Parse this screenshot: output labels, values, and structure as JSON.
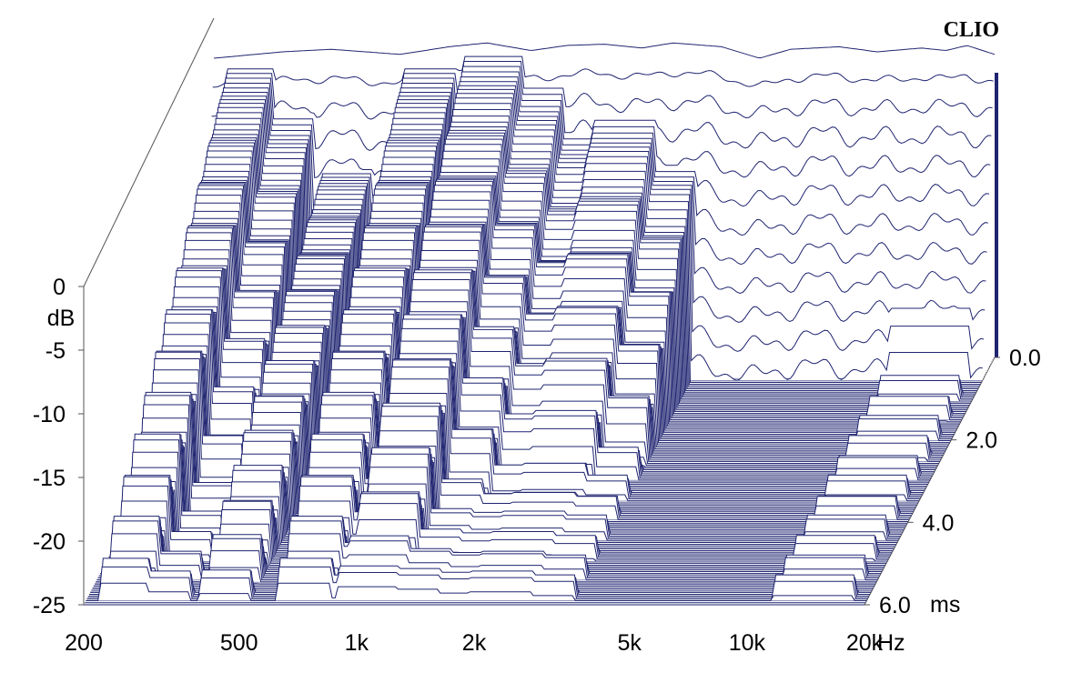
{
  "brand": "CLIO",
  "colors": {
    "trace": "#1f2470",
    "frame": "#555555",
    "text": "#000000",
    "background": "#ffffff"
  },
  "chart_data": {
    "type": "waterfall",
    "title": "",
    "xlabel": "Hz",
    "ylabel": "dB",
    "zlabel": "ms",
    "x_scale": "log",
    "xlim": [
      200,
      20000
    ],
    "ylim": [
      -25,
      0
    ],
    "zlim": [
      0,
      6.0
    ],
    "x_ticks": [
      {
        "value": 200,
        "label": "200"
      },
      {
        "value": 500,
        "label": "500"
      },
      {
        "value": 1000,
        "label": "1k"
      },
      {
        "value": 2000,
        "label": "2k"
      },
      {
        "value": 5000,
        "label": "5k"
      },
      {
        "value": 10000,
        "label": "10k"
      },
      {
        "value": 20000,
        "label": "20k"
      }
    ],
    "y_ticks": [
      {
        "value": 0,
        "label": "0"
      },
      {
        "value": -5,
        "label": "-5"
      },
      {
        "value": -10,
        "label": "-10"
      },
      {
        "value": -15,
        "label": "-15"
      },
      {
        "value": -20,
        "label": "-20"
      },
      {
        "value": -25,
        "label": "-25"
      }
    ],
    "z_ticks": [
      {
        "value": 0.0,
        "label": "0.0"
      },
      {
        "value": 2.0,
        "label": "2.0"
      },
      {
        "value": 4.0,
        "label": "4.0"
      },
      {
        "value": 6.0,
        "label": "6.0"
      }
    ],
    "slices": {
      "count": 120,
      "time_step_ms": 0.05
    },
    "initial_response": {
      "freq": [
        200,
        300,
        400,
        600,
        800,
        1000,
        1300,
        1600,
        2000,
        2500,
        3000,
        4000,
        5000,
        6000,
        8000,
        10000,
        13000,
        15000,
        17000,
        20000
      ],
      "db": [
        -1.5,
        -1.0,
        -0.8,
        -1.2,
        -0.6,
        -0.3,
        -0.9,
        -0.5,
        -0.4,
        -0.7,
        -0.3,
        -0.6,
        -1.5,
        -0.8,
        -0.6,
        -1.0,
        -0.7,
        -0.9,
        -0.5,
        -1.2
      ]
    },
    "decay_ridges": [
      {
        "freq": 250,
        "peak_db": -2,
        "decay_ms": 6.0
      },
      {
        "freq": 320,
        "peak_db": -5,
        "decay_ms": 4.0
      },
      {
        "freq": 450,
        "peak_db": -9,
        "decay_ms": 6.0
      },
      {
        "freq": 720,
        "peak_db": -2,
        "decay_ms": 6.0
      },
      {
        "freq": 900,
        "peak_db": -12,
        "decay_ms": 6.0
      },
      {
        "freq": 1050,
        "peak_db": -1,
        "decay_ms": 5.5
      },
      {
        "freq": 1350,
        "peak_db": -3,
        "decay_ms": 4.0
      },
      {
        "freq": 1750,
        "peak_db": -6,
        "decay_ms": 3.5
      },
      {
        "freq": 2300,
        "peak_db": -5,
        "decay_ms": 3.5
      },
      {
        "freq": 2900,
        "peak_db": -8,
        "decay_ms": 3.0
      },
      {
        "freq": 14500,
        "peak_db": -8,
        "decay_ms": 0.6
      }
    ]
  }
}
